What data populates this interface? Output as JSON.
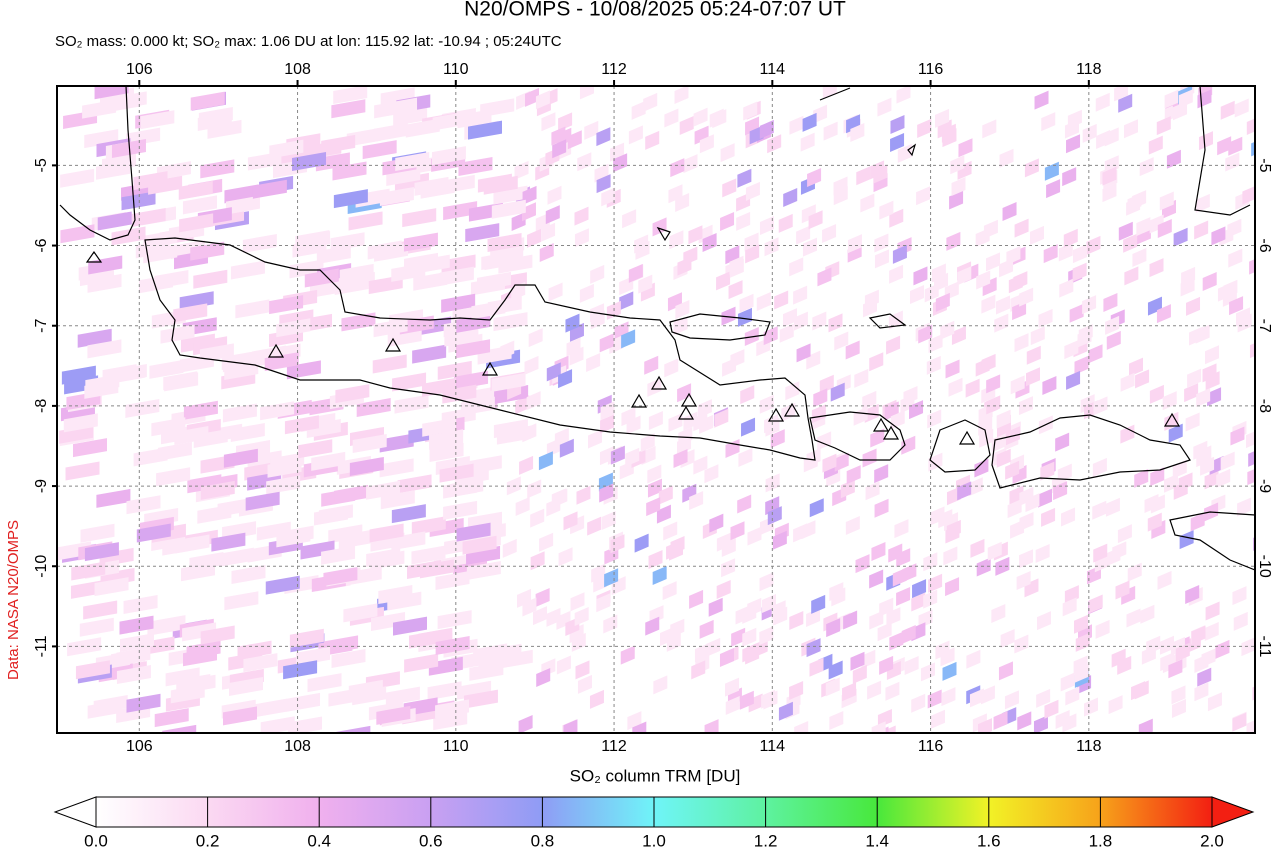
{
  "chart_data": {
    "type": "map",
    "title": "N20/OMPS - 10/08/2025 05:24-07:07 UT",
    "subtitle": "SO₂ mass: 0.000 kt; SO₂ max: 1.06 DU at lon: 115.92 lat: -10.94 ; 05:24UTC",
    "credit": "Data: NASA N20/OMPS",
    "xlim": [
      104.96,
      120.1
    ],
    "xticks": [
      106,
      108,
      110,
      112,
      114,
      116,
      118
    ],
    "ylim": [
      -12.08,
      -4.01
    ],
    "yticks": [
      -5,
      -6,
      -7,
      -8,
      -9,
      -10,
      -11
    ],
    "grid": true,
    "colorbar": {
      "label": "SO₂ column TRM [DU]",
      "lim": [
        0,
        2
      ],
      "ticks": [
        {
          "value": 0,
          "label": "0.0"
        },
        {
          "value": 0.2,
          "label": "0.2"
        },
        {
          "value": 0.4,
          "label": "0.4"
        },
        {
          "value": 0.6,
          "label": "0.6"
        },
        {
          "value": 0.8,
          "label": "0.8"
        },
        {
          "value": 1,
          "label": "1.0"
        },
        {
          "value": 1.2,
          "label": "1.2"
        },
        {
          "value": 1.4,
          "label": "1.4"
        },
        {
          "value": 1.6,
          "label": "1.6"
        },
        {
          "value": 1.8,
          "label": "1.8"
        },
        {
          "value": 2,
          "label": "2.0"
        }
      ]
    }
  }
}
